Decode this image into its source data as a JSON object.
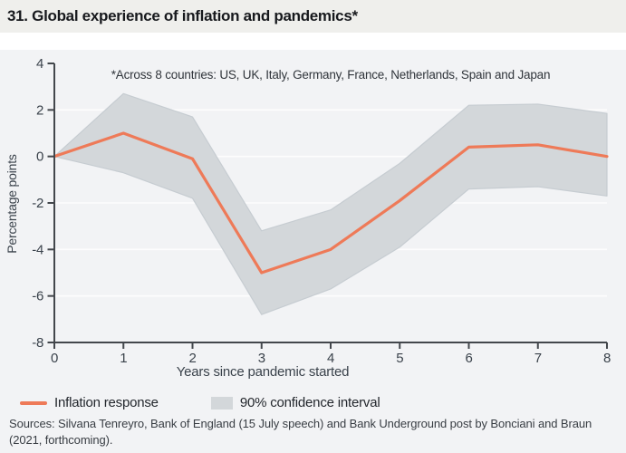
{
  "page": {
    "title": "31. Global experience of inflation and pandemics*",
    "sources": "Sources: Silvana Tenreyro, Bank of England (15 July speech) and Bank Underground post by Bonciani and Braun (2021, forthcoming)."
  },
  "colors": {
    "accent_orange": "#ee7a58",
    "band_gray": "#d3d7da",
    "band_edge": "#c6ccd1",
    "chart_background": "#f2f3f5",
    "title_background": "#efefec",
    "gridline": "#fdfdfd",
    "axis": "#43474c",
    "tick_text": "#3a424b"
  },
  "chart_data": {
    "type": "line",
    "annotation": "*Across 8 countries: US, UK, Italy, Germany, France, Netherlands, Spain and Japan",
    "xlabel": "Years since pandemic started",
    "ylabel": "Percentage points",
    "x": [
      0,
      1,
      2,
      3,
      4,
      5,
      6,
      7,
      8
    ],
    "xticks": [
      0,
      1,
      2,
      3,
      4,
      5,
      6,
      7,
      8
    ],
    "yticks": [
      4,
      2,
      0,
      -2,
      -4,
      -6,
      -8
    ],
    "ylim": [
      -8,
      4
    ],
    "xlim": [
      0,
      8
    ],
    "grid": "horizontal-white",
    "legend_position": "bottom-left",
    "series": [
      {
        "name": "Inflation response",
        "style": "line",
        "values": [
          0,
          1.0,
          -0.1,
          -5.0,
          -4.0,
          -1.9,
          0.4,
          0.5,
          0.0
        ]
      },
      {
        "name": "90% confidence interval",
        "style": "band",
        "upper": [
          0,
          2.7,
          1.7,
          -3.2,
          -2.3,
          -0.3,
          2.2,
          2.25,
          1.85
        ],
        "lower": [
          0,
          -0.7,
          -1.8,
          -6.8,
          -5.7,
          -3.9,
          -1.4,
          -1.3,
          -1.7
        ]
      }
    ],
    "legend": [
      "Inflation response",
      "90% confidence interval"
    ]
  }
}
